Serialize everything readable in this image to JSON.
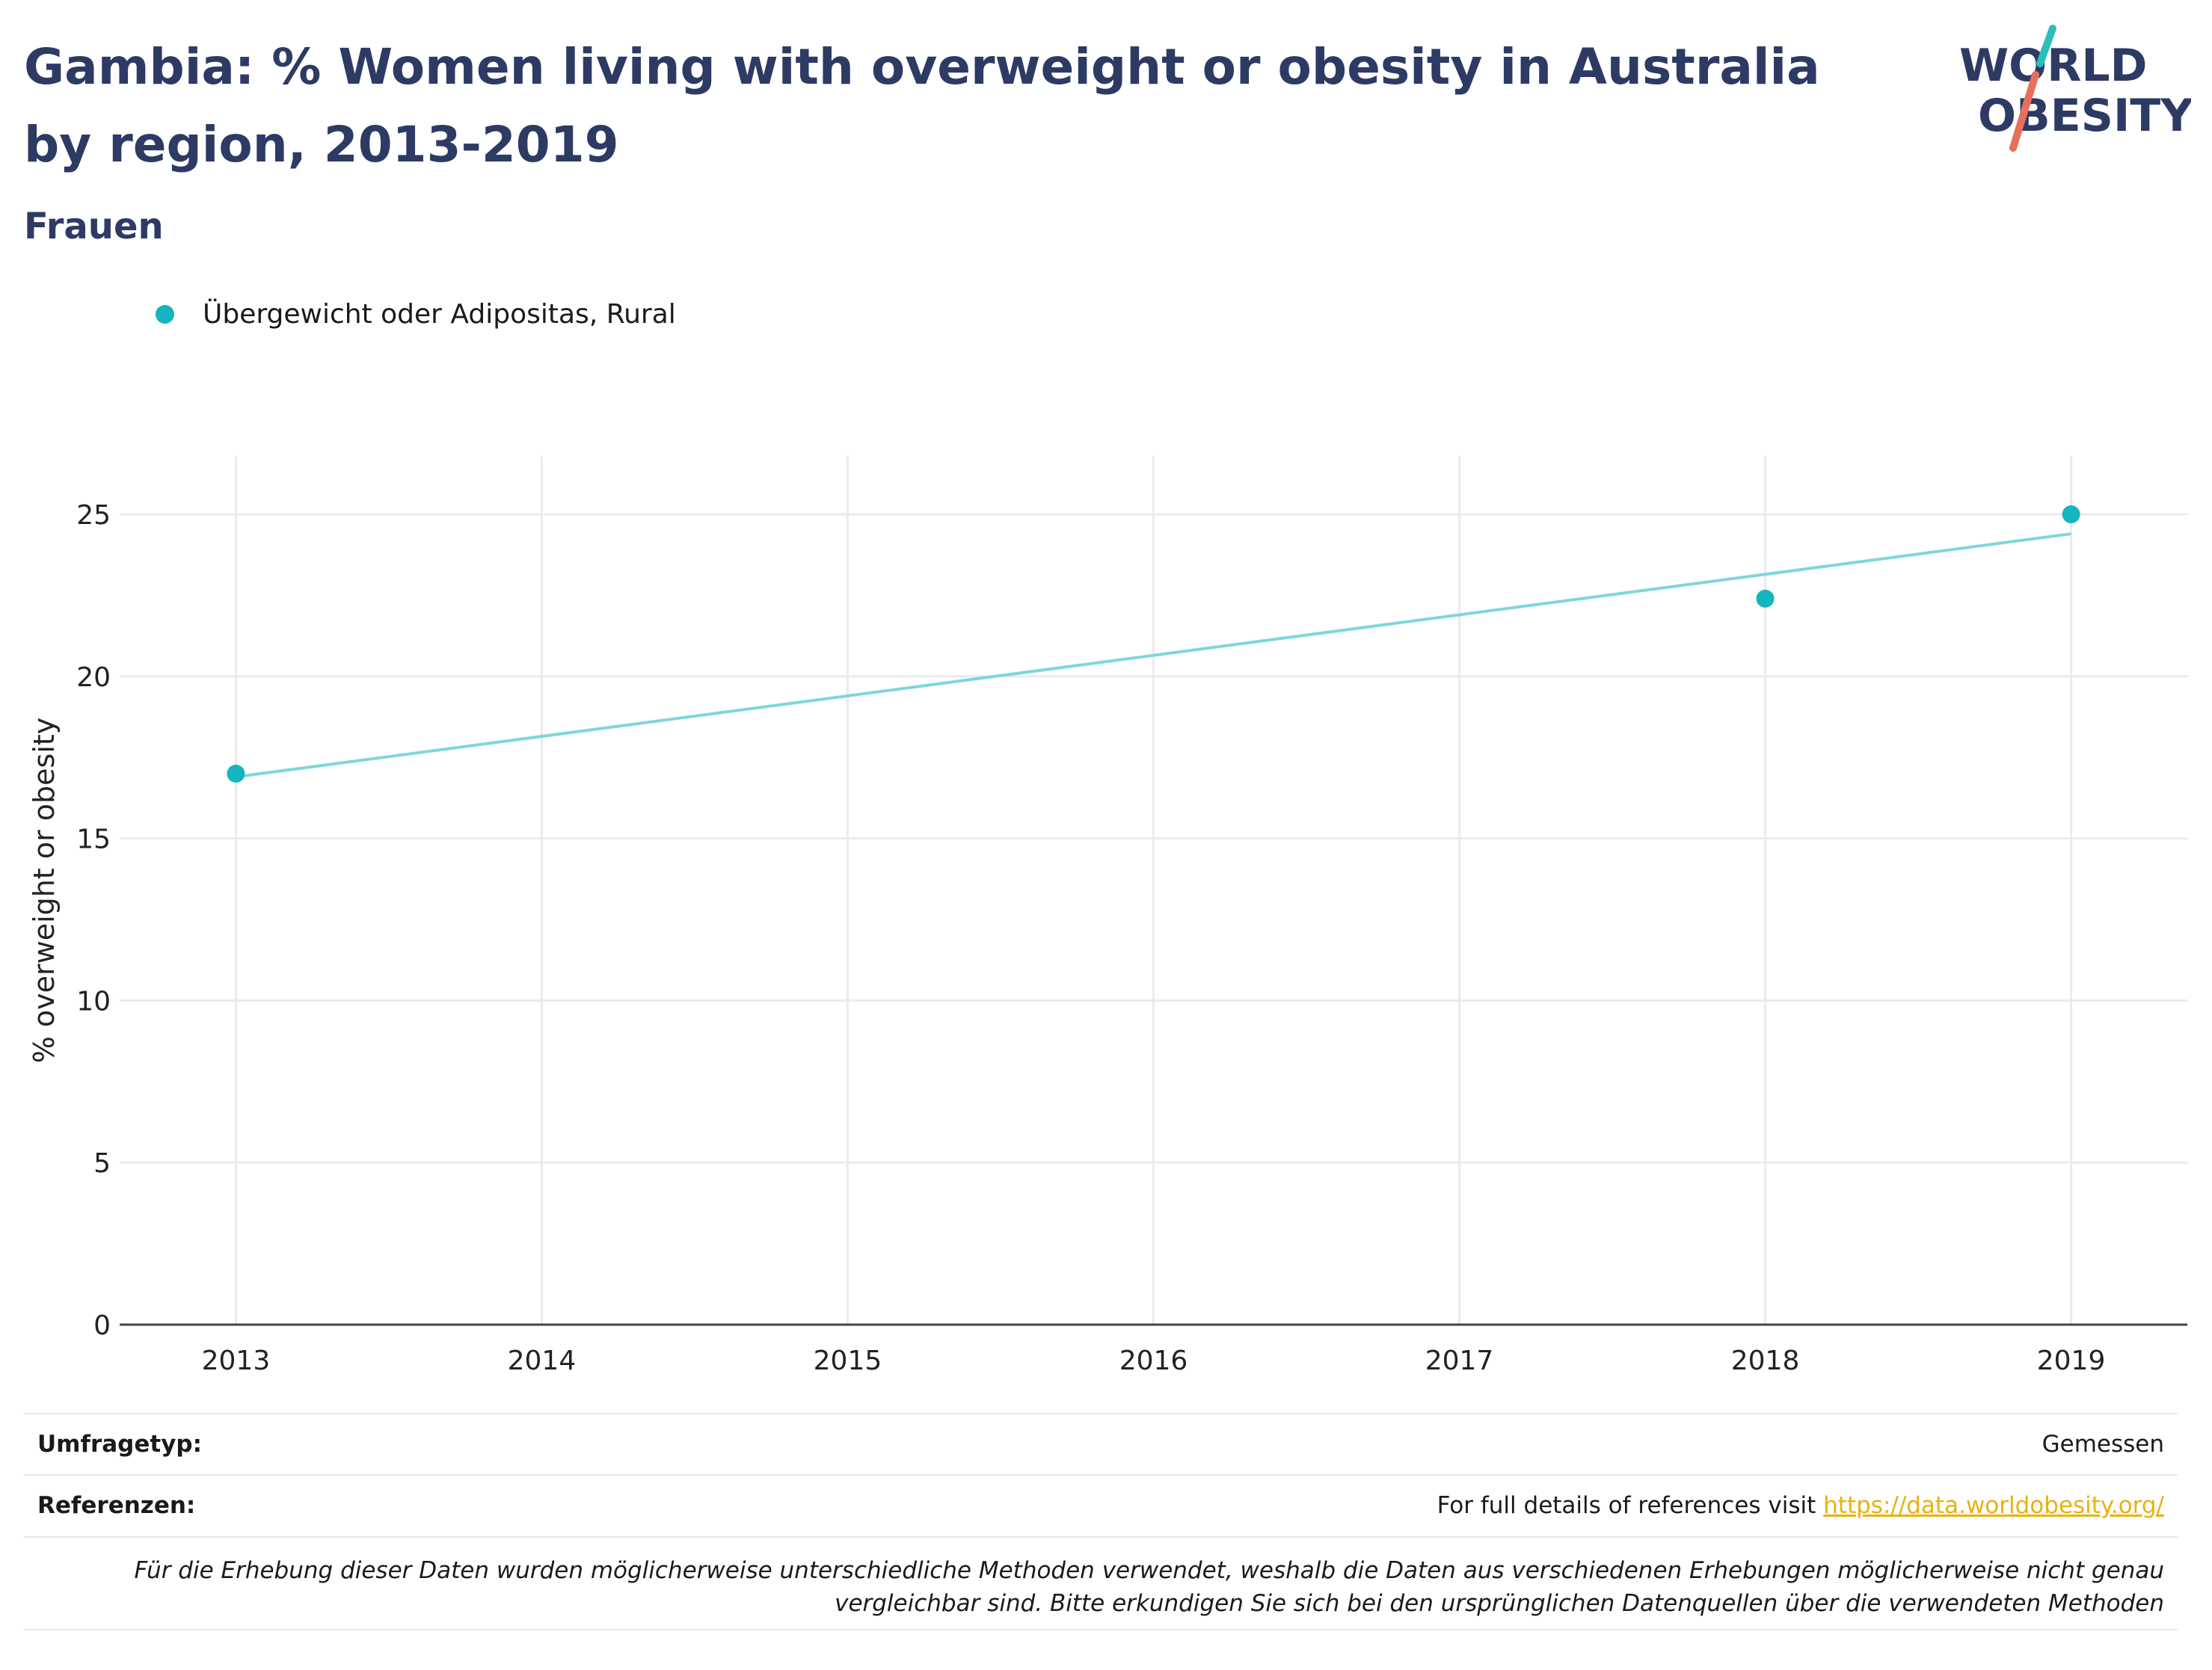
{
  "title": "Gambia: % Women living with overweight or obesity in Australia by region, 2013-2019",
  "subtitle": "Frauen",
  "logo": {
    "line1": "WORLD",
    "line2": "OBESITY"
  },
  "colors": {
    "title": "#2d3a64",
    "series": "#13b5bf",
    "trend": "#7fd6dc",
    "grid": "#e9ebf0",
    "link": "#e8b20f"
  },
  "chart_data": {
    "type": "scatter",
    "ylabel": "% overweight or obesity",
    "xlim": [
      2012.62,
      2019.38
    ],
    "ylim": [
      0,
      26.8
    ],
    "x_ticks": [
      2013,
      2014,
      2015,
      2016,
      2017,
      2018,
      2019
    ],
    "y_ticks": [
      0,
      5,
      10,
      15,
      20,
      25
    ],
    "grid": true,
    "legend_position": "top-left",
    "series": [
      {
        "name": "Übergewicht oder Adipositas, Rural",
        "x": [
          2013,
          2018,
          2019
        ],
        "y": [
          17.0,
          22.4,
          25.0
        ]
      }
    ],
    "trendline": {
      "x": [
        2013,
        2019
      ],
      "y": [
        16.9,
        24.4
      ]
    }
  },
  "info": {
    "survey_label": "Umfragetyp:",
    "survey_value": "Gemessen",
    "ref_label": "Referenzen:",
    "ref_text": "For full details of references visit ",
    "ref_link": "https://data.worldobesity.org/"
  },
  "note": "Für die Erhebung dieser Daten wurden möglicherweise unterschiedliche Methoden verwendet, weshalb die Daten aus verschiedenen Erhebungen möglicherweise nicht genau vergleichbar sind. Bitte erkundigen Sie sich bei den ursprünglichen Datenquellen über die verwendeten Methoden"
}
